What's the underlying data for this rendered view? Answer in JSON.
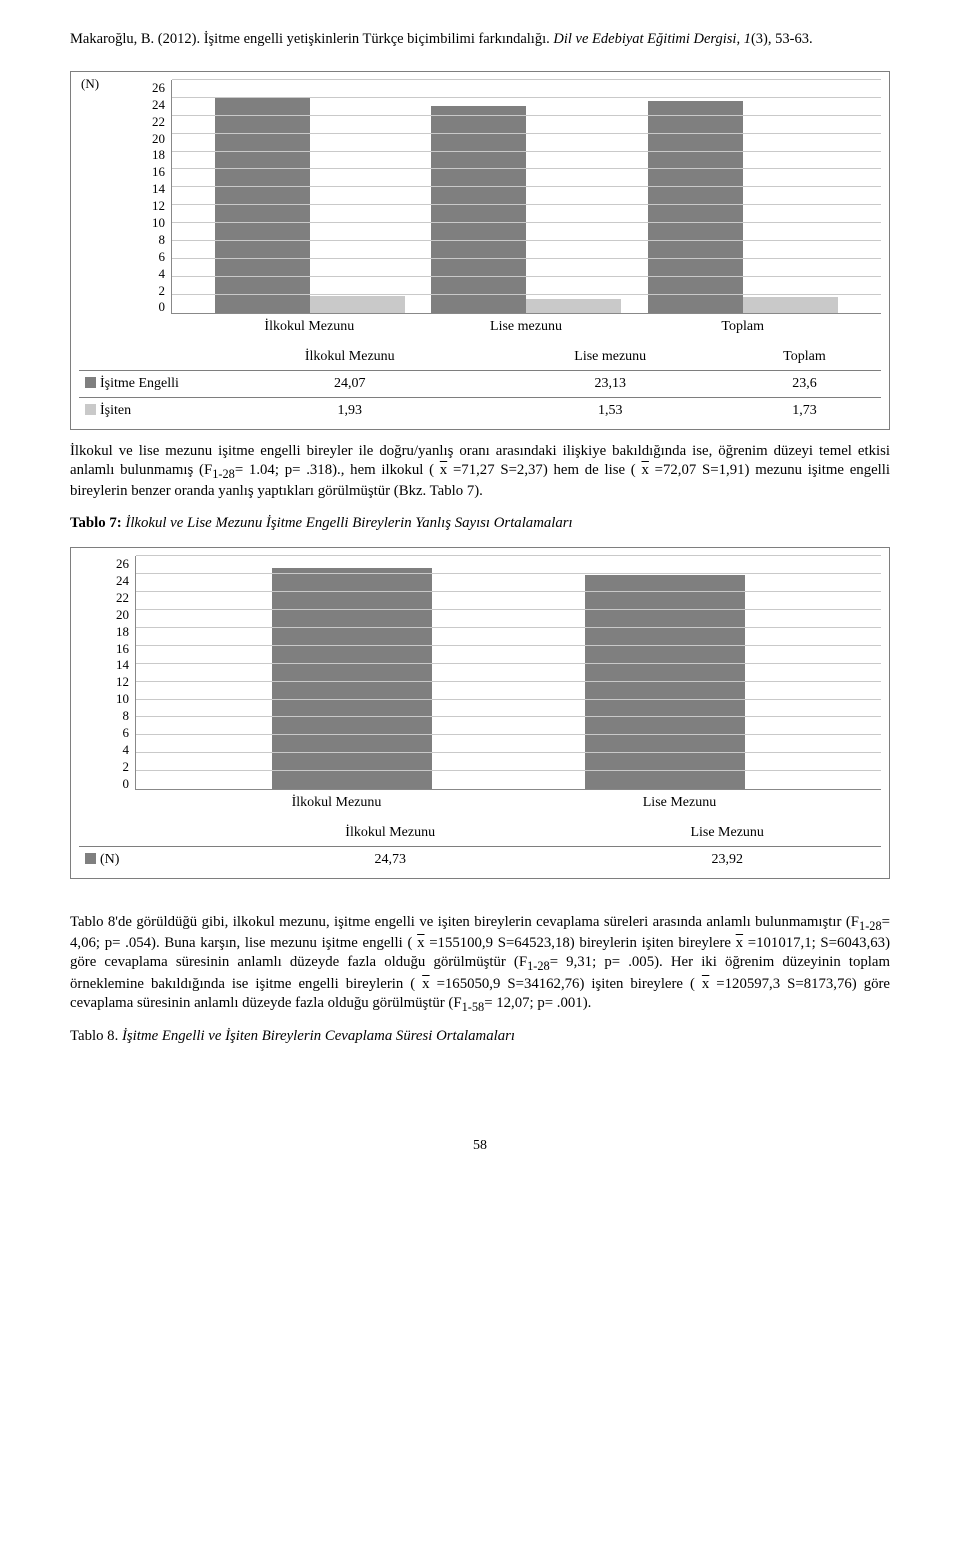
{
  "citation": {
    "author_year": "Makaroğlu, B. (2012).",
    "title": "İşitme engelli yetişkinlerin Türkçe biçimbilimi farkındalığı.",
    "journal": "Dil ve Edebiyat Eğitimi Dergisi, 1",
    "issue_pages": "(3), 53-63."
  },
  "chart1": {
    "type": "bar",
    "y_meta": "(N)",
    "y_max": 26,
    "y_ticks": [
      26,
      24,
      22,
      20,
      18,
      16,
      14,
      12,
      10,
      8,
      6,
      4,
      2,
      0
    ],
    "categories": [
      "İlkokul Mezunu",
      "Lise mezunu",
      "Toplam"
    ],
    "series": [
      {
        "name": "İşitme Engelli",
        "swatch": "dark",
        "values": [
          24.07,
          23.13,
          23.6
        ]
      },
      {
        "name": "İşiten",
        "swatch": "light",
        "values": [
          1.93,
          1.53,
          1.73
        ]
      }
    ],
    "display_values": {
      "row0": [
        "24,07",
        "23,13",
        "23,6"
      ],
      "row1": [
        "1,93",
        "1,53",
        "1,73"
      ]
    },
    "colors": {
      "dark": "#7f7f7f",
      "light": "#c9c9c9",
      "grid": "#c9c9c9",
      "border": "#7e7e7e"
    }
  },
  "para1": {
    "text_pre": "İlkokul ve lise mezunu işitme engelli bireyler ile doğru/yanlış oranı arasındaki ilişkiye bakıldığında ise, öğrenim düzeyi temel etkisi anlamlı bulunmamış (F",
    "sub1": "1-28",
    "mid1": "= 1.04;  p= .318)., hem ilkokul ( ",
    "xbar1": "x",
    "mid2": " =71,27 S=2,37) hem de lise ( ",
    "xbar2": "x",
    "mid3": " =72,07 S=1,91) mezunu işitme engelli bireylerin benzer oranda yanlış yaptıkları görülmüştür (Bkz. Tablo 7)."
  },
  "tablo7_label": {
    "bold": "Tablo 7:",
    "italic": "İlkokul ve Lise Mezunu İşitme Engelli Bireylerin Yanlış Sayısı Ortalamaları"
  },
  "chart2": {
    "type": "bar",
    "y_max": 26,
    "y_ticks": [
      26,
      24,
      22,
      20,
      18,
      16,
      14,
      12,
      10,
      8,
      6,
      4,
      2,
      0
    ],
    "categories": [
      "İlkokul Mezunu",
      "Lise Mezunu"
    ],
    "series": [
      {
        "name": "(N)",
        "swatch": "dark",
        "values": [
          24.73,
          23.92
        ]
      }
    ],
    "display_values": {
      "row0": [
        "24,73",
        "23,92"
      ]
    },
    "colors": {
      "dark": "#7f7f7f",
      "grid": "#c9c9c9",
      "border": "#7e7e7e"
    }
  },
  "para2": {
    "t1": "Tablo 8'de görüldüğü gibi, ilkokul mezunu, işitme engelli ve işiten bireylerin cevaplama süreleri arasında anlamlı bulunmamıştır (F",
    "s1": "1-28",
    "t2": "= 4,06;   p= .054). Buna karşın, lise mezunu işitme engelli ( ",
    "t3": " =155100,9 S=64523,18) bireylerin işiten bireylere ",
    "t4": " =101017,1; S=6043,63) göre cevaplama süresinin anlamlı düzeyde fazla olduğu görülmüştür (F",
    "s2": "1-28",
    "t5": "= 9,31;  p= .005). Her iki öğrenim düzeyinin toplam örneklemine bakıldığında ise işitme engelli bireylerin ( ",
    "t6": " =165050,9 S=34162,76) işiten bireylere ( ",
    "t7": " =120597,3 S=8173,76) göre cevaplama süresinin anlamlı düzeyde fazla olduğu görülmüştür (F",
    "s3": "1-58",
    "t8": "= 12,07;  p= .001)."
  },
  "tablo8_label": {
    "plain": "Tablo 8.",
    "italic": "İşitme Engelli ve İşiten Bireylerin Cevaplama Süresi Ortalamaları"
  },
  "page_number": "58"
}
